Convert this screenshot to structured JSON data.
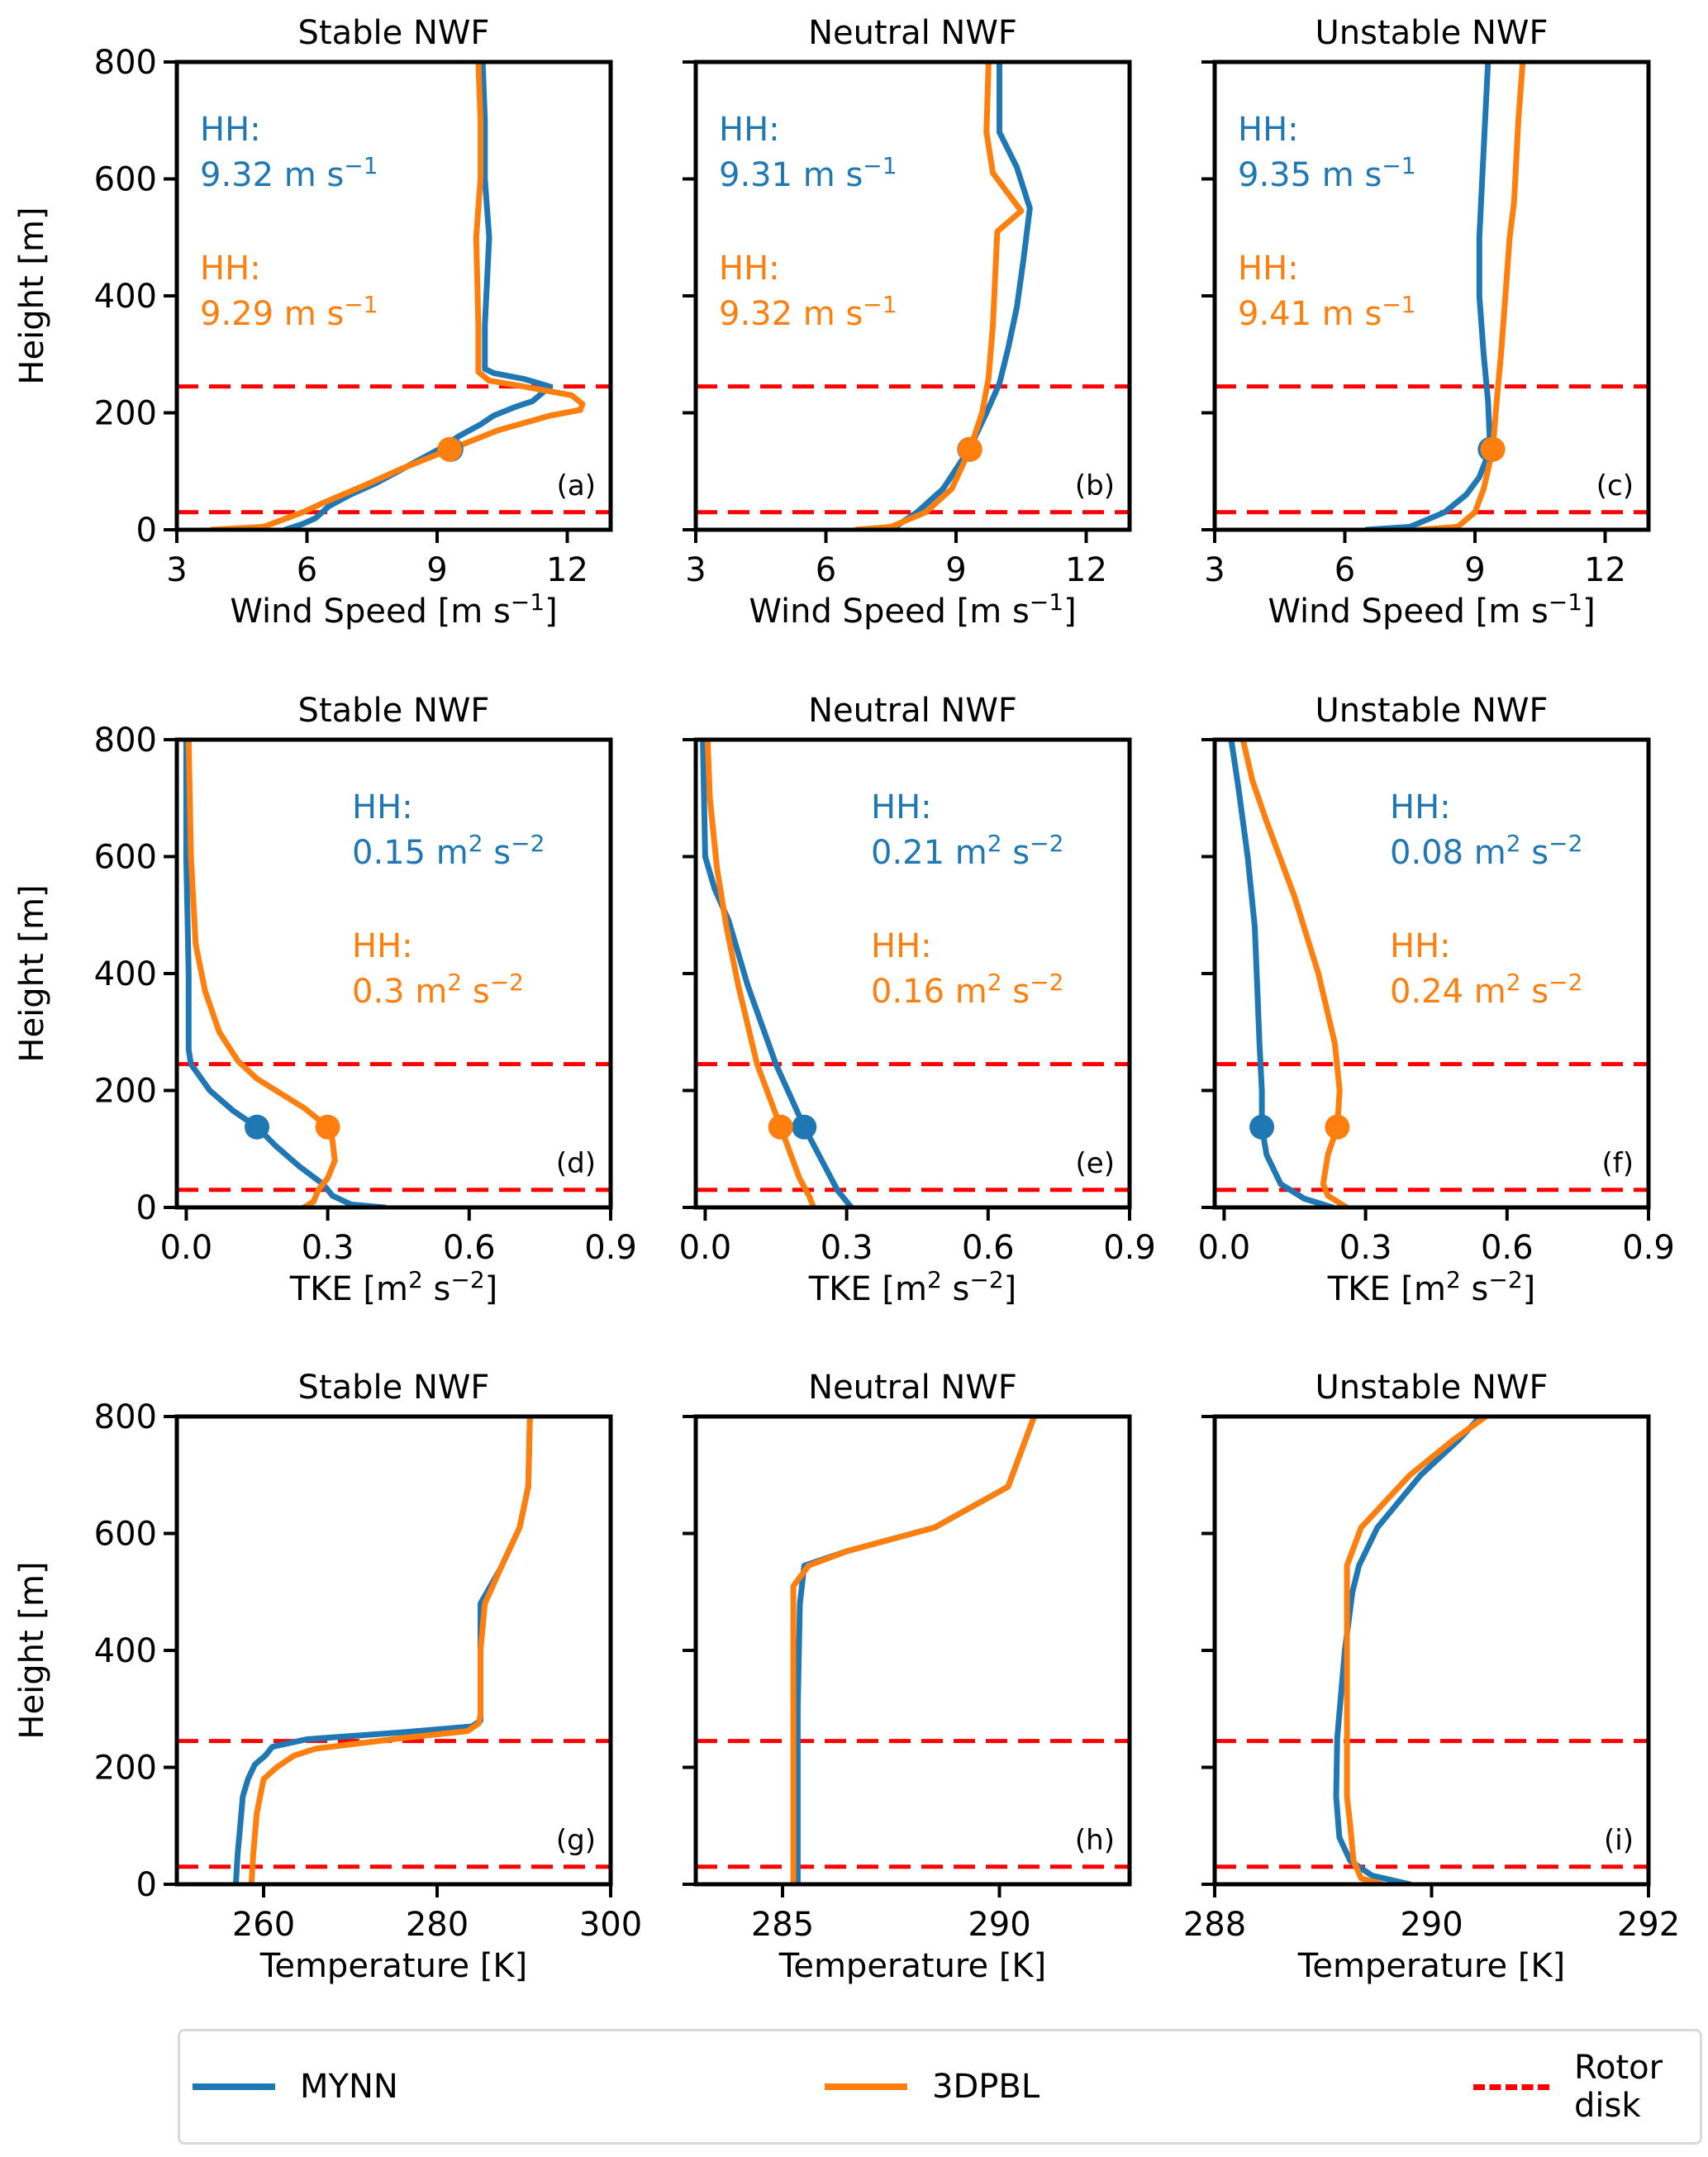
{
  "figure": {
    "colors": {
      "mynn": "#1f77b4",
      "3dpbl": "#ff7f0e",
      "rotor": "#ff0000"
    },
    "ylabel": "Height [m]",
    "legend": [
      {
        "key": "mynn",
        "label": "MYNN",
        "style": "solid"
      },
      {
        "key": "3dpbl",
        "label": "3DPBL",
        "style": "solid"
      },
      {
        "key": "rotor",
        "label": "Rotor disk",
        "label_lines": [
          "Rotor",
          "disk"
        ],
        "style": "dashed"
      }
    ]
  },
  "chart_data": [
    {
      "type": "line",
      "panel": "(a)",
      "title": "Stable NWF",
      "xlabel": "Wind Speed [m s⁻¹]",
      "ylabel": "Height [m]",
      "xlim": [
        3,
        13
      ],
      "ylim": [
        0,
        800
      ],
      "xticks": [
        3,
        6,
        9,
        12
      ],
      "xtick_labels": [
        "3",
        "6",
        "9",
        "12"
      ],
      "yticks": [
        0,
        200,
        400,
        600,
        800
      ],
      "ytick_labels": [
        "0",
        "200",
        "400",
        "600",
        "800"
      ],
      "rotor_disk": [
        30,
        245
      ],
      "hub_height": 137.5,
      "annotations": [
        {
          "series": "MYNN",
          "label": "HH:",
          "value": "9.32 m s⁻¹"
        },
        {
          "series": "3DPBL",
          "label": "HH:",
          "value": "9.29 m s⁻¹"
        }
      ],
      "series": [
        {
          "name": "MYNN",
          "hh_value": 9.32,
          "x": [
            5.5,
            5.9,
            6.2,
            6.5,
            7.0,
            7.6,
            8.1,
            8.6,
            9.1,
            9.5,
            10.0,
            10.3,
            10.8,
            11.2,
            11.6,
            11.0,
            10.3,
            10.1,
            10.1,
            10.2,
            10.1,
            10.1,
            10.05
          ],
          "y": [
            0,
            10,
            20,
            40,
            60,
            80,
            100,
            120,
            140,
            160,
            180,
            195,
            210,
            220,
            245,
            258,
            268,
            275,
            350,
            500,
            600,
            700,
            800
          ]
        },
        {
          "name": "3DPBL",
          "hh_value": 9.29,
          "x": [
            3.8,
            5.0,
            5.9,
            6.5,
            7.3,
            8.2,
            9.3,
            10.4,
            11.6,
            12.3,
            12.35,
            12.1,
            11.0,
            10.2,
            9.95,
            9.95,
            9.9,
            10.0,
            10.0,
            9.95
          ],
          "y": [
            0,
            5,
            30,
            50,
            75,
            105,
            137.5,
            170,
            195,
            205,
            215,
            230,
            245,
            255,
            270,
            350,
            500,
            600,
            700,
            800
          ]
        }
      ]
    },
    {
      "type": "line",
      "panel": "(b)",
      "title": "Neutral NWF",
      "xlabel": "Wind Speed [m s⁻¹]",
      "ylabel": "",
      "xlim": [
        3,
        13
      ],
      "ylim": [
        0,
        800
      ],
      "xticks": [
        3,
        6,
        9,
        12
      ],
      "xtick_labels": [
        "3",
        "6",
        "9",
        "12"
      ],
      "yticks": [
        0,
        200,
        400,
        600,
        800
      ],
      "ytick_labels": [],
      "rotor_disk": [
        30,
        245
      ],
      "hub_height": 137.5,
      "annotations": [
        {
          "series": "MYNN",
          "label": "HH:",
          "value": "9.31 m s⁻¹"
        },
        {
          "series": "3DPBL",
          "label": "HH:",
          "value": "9.32 m s⁻¹"
        }
      ],
      "series": [
        {
          "name": "MYNN",
          "hh_value": 9.31,
          "x": [
            6.7,
            7.6,
            8.1,
            8.7,
            9.3,
            9.7,
            10.0,
            10.2,
            10.4,
            10.55,
            10.7,
            10.4,
            10.0,
            10.0
          ],
          "y": [
            0,
            5,
            30,
            70,
            137.5,
            200,
            250,
            310,
            380,
            460,
            550,
            620,
            680,
            800
          ]
        },
        {
          "name": "3DPBL",
          "hh_value": 9.32,
          "x": [
            6.7,
            7.5,
            8.3,
            8.9,
            9.32,
            9.6,
            9.75,
            9.85,
            9.95,
            10.5,
            9.85,
            9.7,
            9.75
          ],
          "y": [
            0,
            5,
            30,
            70,
            137.5,
            200,
            260,
            350,
            510,
            545,
            610,
            680,
            800
          ]
        }
      ]
    },
    {
      "type": "line",
      "panel": "(c)",
      "title": "Unstable NWF",
      "xlabel": "Wind Speed [m s⁻¹]",
      "ylabel": "",
      "xlim": [
        3,
        13
      ],
      "ylim": [
        0,
        800
      ],
      "xticks": [
        3,
        6,
        9,
        12
      ],
      "xtick_labels": [
        "3",
        "6",
        "9",
        "12"
      ],
      "yticks": [
        0,
        200,
        400,
        600,
        800
      ],
      "ytick_labels": [],
      "rotor_disk": [
        30,
        245
      ],
      "hub_height": 137.5,
      "annotations": [
        {
          "series": "MYNN",
          "label": "HH:",
          "value": "9.35 m s⁻¹"
        },
        {
          "series": "3DPBL",
          "label": "HH:",
          "value": "9.41 m s⁻¹"
        }
      ],
      "series": [
        {
          "name": "MYNN",
          "hh_value": 9.35,
          "x": [
            6.5,
            7.5,
            8.3,
            8.8,
            9.1,
            9.35,
            9.3,
            9.2,
            9.1,
            9.1,
            9.2,
            9.3
          ],
          "y": [
            0,
            5,
            30,
            60,
            90,
            137.5,
            220,
            300,
            400,
            500,
            650,
            800
          ]
        },
        {
          "name": "3DPBL",
          "hh_value": 9.41,
          "x": [
            7.7,
            8.6,
            9.0,
            9.2,
            9.41,
            9.5,
            9.6,
            9.7,
            9.8,
            9.9,
            10.0,
            10.1
          ],
          "y": [
            0,
            5,
            30,
            70,
            137.5,
            220,
            300,
            400,
            500,
            560,
            700,
            800
          ]
        }
      ]
    },
    {
      "type": "line",
      "panel": "(d)",
      "title": "Stable NWF",
      "xlabel": "TKE [m² s⁻²]",
      "ylabel": "Height [m]",
      "xlim": [
        -0.02,
        0.9
      ],
      "ylim": [
        0,
        800
      ],
      "xticks": [
        0.0,
        0.3,
        0.6,
        0.9
      ],
      "xtick_labels": [
        "0.0",
        "0.3",
        "0.6",
        "0.9"
      ],
      "yticks": [
        0,
        200,
        400,
        600,
        800
      ],
      "ytick_labels": [
        "0",
        "200",
        "400",
        "600",
        "800"
      ],
      "rotor_disk": [
        30,
        245
      ],
      "hub_height": 137.5,
      "annotations": [
        {
          "series": "MYNN",
          "label": "HH:",
          "value": "0.15 m² s⁻²"
        },
        {
          "series": "3DPBL",
          "label": "HH:",
          "value": "0.3 m² s⁻²"
        }
      ],
      "series": [
        {
          "name": "MYNN",
          "hh_value": 0.15,
          "x": [
            0.42,
            0.35,
            0.31,
            0.29,
            0.24,
            0.19,
            0.15,
            0.1,
            0.05,
            0.01,
            0.005,
            0.005,
            0.0,
            0.0
          ],
          "y": [
            0,
            5,
            20,
            40,
            70,
            105,
            137.5,
            165,
            200,
            245,
            270,
            400,
            600,
            800
          ]
        },
        {
          "name": "3DPBL",
          "hh_value": 0.3,
          "x": [
            0.25,
            0.27,
            0.28,
            0.3,
            0.315,
            0.31,
            0.3,
            0.25,
            0.15,
            0.11,
            0.07,
            0.04,
            0.02,
            0.01,
            0.005
          ],
          "y": [
            0,
            10,
            30,
            50,
            80,
            115,
            137.5,
            170,
            220,
            250,
            300,
            370,
            450,
            600,
            800
          ]
        }
      ]
    },
    {
      "type": "line",
      "panel": "(e)",
      "title": "Neutral NWF",
      "xlabel": "TKE [m² s⁻²]",
      "ylabel": "",
      "xlim": [
        -0.02,
        0.9
      ],
      "ylim": [
        0,
        800
      ],
      "xticks": [
        0.0,
        0.3,
        0.6,
        0.9
      ],
      "xtick_labels": [
        "0.0",
        "0.3",
        "0.6",
        "0.9"
      ],
      "yticks": [
        0,
        200,
        400,
        600,
        800
      ],
      "ytick_labels": [],
      "rotor_disk": [
        30,
        245
      ],
      "hub_height": 137.5,
      "annotations": [
        {
          "series": "MYNN",
          "label": "HH:",
          "value": "0.21 m² s⁻²"
        },
        {
          "series": "3DPBL",
          "label": "HH:",
          "value": "0.16 m² s⁻²"
        }
      ],
      "series": [
        {
          "name": "MYNN",
          "hh_value": 0.21,
          "x": [
            0.31,
            0.28,
            0.21,
            0.15,
            0.09,
            0.05,
            0.02,
            0.0,
            -0.005
          ],
          "y": [
            0,
            30,
            137.5,
            245,
            380,
            490,
            545,
            600,
            800
          ]
        },
        {
          "name": "3DPBL",
          "hh_value": 0.16,
          "x": [
            0.23,
            0.22,
            0.2,
            0.16,
            0.11,
            0.07,
            0.045,
            0.025,
            0.01,
            0.005
          ],
          "y": [
            0,
            20,
            50,
            137.5,
            245,
            380,
            480,
            580,
            700,
            800
          ]
        }
      ]
    },
    {
      "type": "line",
      "panel": "(f)",
      "title": "Unstable NWF",
      "xlabel": "TKE [m² s⁻²]",
      "ylabel": "",
      "xlim": [
        -0.02,
        0.9
      ],
      "ylim": [
        0,
        800
      ],
      "xticks": [
        0.0,
        0.3,
        0.6,
        0.9
      ],
      "xtick_labels": [
        "0.0",
        "0.3",
        "0.6",
        "0.9"
      ],
      "yticks": [
        0,
        200,
        400,
        600,
        800
      ],
      "ytick_labels": [],
      "rotor_disk": [
        30,
        245
      ],
      "hub_height": 137.5,
      "annotations": [
        {
          "series": "MYNN",
          "label": "HH:",
          "value": "0.08 m² s⁻²"
        },
        {
          "series": "3DPBL",
          "label": "HH:",
          "value": "0.24 m² s⁻²"
        }
      ],
      "series": [
        {
          "name": "MYNN",
          "hh_value": 0.08,
          "x": [
            0.23,
            0.17,
            0.12,
            0.09,
            0.08,
            0.08,
            0.075,
            0.07,
            0.065,
            0.05,
            0.03,
            0.015
          ],
          "y": [
            0,
            15,
            40,
            90,
            137.5,
            200,
            280,
            380,
            480,
            600,
            720,
            800
          ]
        },
        {
          "name": "3DPBL",
          "hh_value": 0.24,
          "x": [
            0.26,
            0.22,
            0.21,
            0.22,
            0.24,
            0.245,
            0.235,
            0.2,
            0.15,
            0.09,
            0.06,
            0.04
          ],
          "y": [
            0,
            20,
            40,
            90,
            137.5,
            200,
            280,
            400,
            530,
            660,
            730,
            800
          ]
        }
      ]
    },
    {
      "type": "line",
      "panel": "(g)",
      "title": "Stable NWF",
      "xlabel": "Temperature [K]",
      "ylabel": "Height [m]",
      "xlim": [
        250,
        300
      ],
      "ylim": [
        0,
        800
      ],
      "xticks": [
        260,
        280,
        300
      ],
      "xtick_labels": [
        "260",
        "280",
        "300"
      ],
      "yticks": [
        0,
        200,
        400,
        600,
        800
      ],
      "ytick_labels": [
        "0",
        "200",
        "400",
        "600",
        "800"
      ],
      "rotor_disk": [
        30,
        245
      ],
      "hub_height": 137.5,
      "annotations": [],
      "series": [
        {
          "name": "MYNN",
          "x": [
            256.8,
            257.0,
            257.3,
            257.6,
            258.2,
            259.0,
            260.2,
            261.0,
            265.0,
            276.0,
            284.0,
            285.0,
            285.0,
            285.0,
            287.3,
            289.5,
            290.5,
            290.7
          ],
          "y": [
            0,
            50,
            100,
            150,
            180,
            205,
            220,
            235,
            248,
            260,
            270,
            280,
            400,
            480,
            540,
            610,
            680,
            800
          ]
        },
        {
          "name": "3DPBL",
          "x": [
            258.6,
            258.8,
            259.2,
            260.0,
            261.5,
            263.5,
            266.0,
            276.0,
            283.5,
            284.8,
            285.0,
            285.0,
            285.5,
            287.3,
            289.5,
            290.5,
            290.7
          ],
          "y": [
            0,
            50,
            120,
            180,
            200,
            220,
            232,
            250,
            262,
            275,
            290,
            400,
            480,
            540,
            610,
            680,
            800
          ]
        }
      ]
    },
    {
      "type": "line",
      "panel": "(h)",
      "title": "Neutral NWF",
      "xlabel": "Temperature [K]",
      "ylabel": "",
      "xlim": [
        283,
        293
      ],
      "ylim": [
        0,
        800
      ],
      "xticks": [
        285,
        290
      ],
      "xtick_labels": [
        "285",
        "290"
      ],
      "yticks": [
        0,
        200,
        400,
        600,
        800
      ],
      "ytick_labels": [],
      "rotor_disk": [
        30,
        245
      ],
      "hub_height": 137.5,
      "annotations": [],
      "series": [
        {
          "name": "MYNN",
          "x": [
            285.35,
            285.35,
            285.4,
            285.5,
            286.5,
            288.5,
            290.2,
            290.6,
            290.8
          ],
          "y": [
            0,
            300,
            480,
            545,
            570,
            610,
            680,
            760,
            800
          ]
        },
        {
          "name": "3DPBL",
          "x": [
            285.25,
            285.25,
            285.25,
            285.6,
            286.5,
            288.5,
            290.2,
            290.6,
            290.8
          ],
          "y": [
            0,
            300,
            510,
            545,
            570,
            610,
            680,
            760,
            800
          ]
        }
      ]
    },
    {
      "type": "line",
      "panel": "(i)",
      "title": "Unstable NWF",
      "xlabel": "Temperature [K]",
      "ylabel": "",
      "xlim": [
        288,
        292
      ],
      "ylim": [
        0,
        800
      ],
      "xticks": [
        288,
        290,
        292
      ],
      "xtick_labels": [
        "288",
        "290",
        "292"
      ],
      "yticks": [
        0,
        200,
        400,
        600,
        800
      ],
      "ytick_labels": [],
      "rotor_disk": [
        30,
        245
      ],
      "hub_height": 137.5,
      "annotations": [],
      "series": [
        {
          "name": "MYNN",
          "x": [
            289.8,
            289.45,
            289.25,
            289.15,
            289.12,
            289.13,
            289.2,
            289.27,
            289.33,
            289.5,
            289.9,
            290.25,
            290.45
          ],
          "y": [
            0,
            15,
            40,
            80,
            150,
            250,
            400,
            500,
            545,
            610,
            700,
            760,
            800
          ]
        },
        {
          "name": "3DPBL",
          "x": [
            289.55,
            289.35,
            289.28,
            289.25,
            289.22,
            289.22,
            289.22,
            289.22,
            289.22,
            289.35,
            289.8,
            290.2,
            290.5
          ],
          "y": [
            0,
            10,
            40,
            100,
            150,
            250,
            400,
            500,
            545,
            610,
            700,
            760,
            800
          ]
        }
      ]
    }
  ]
}
